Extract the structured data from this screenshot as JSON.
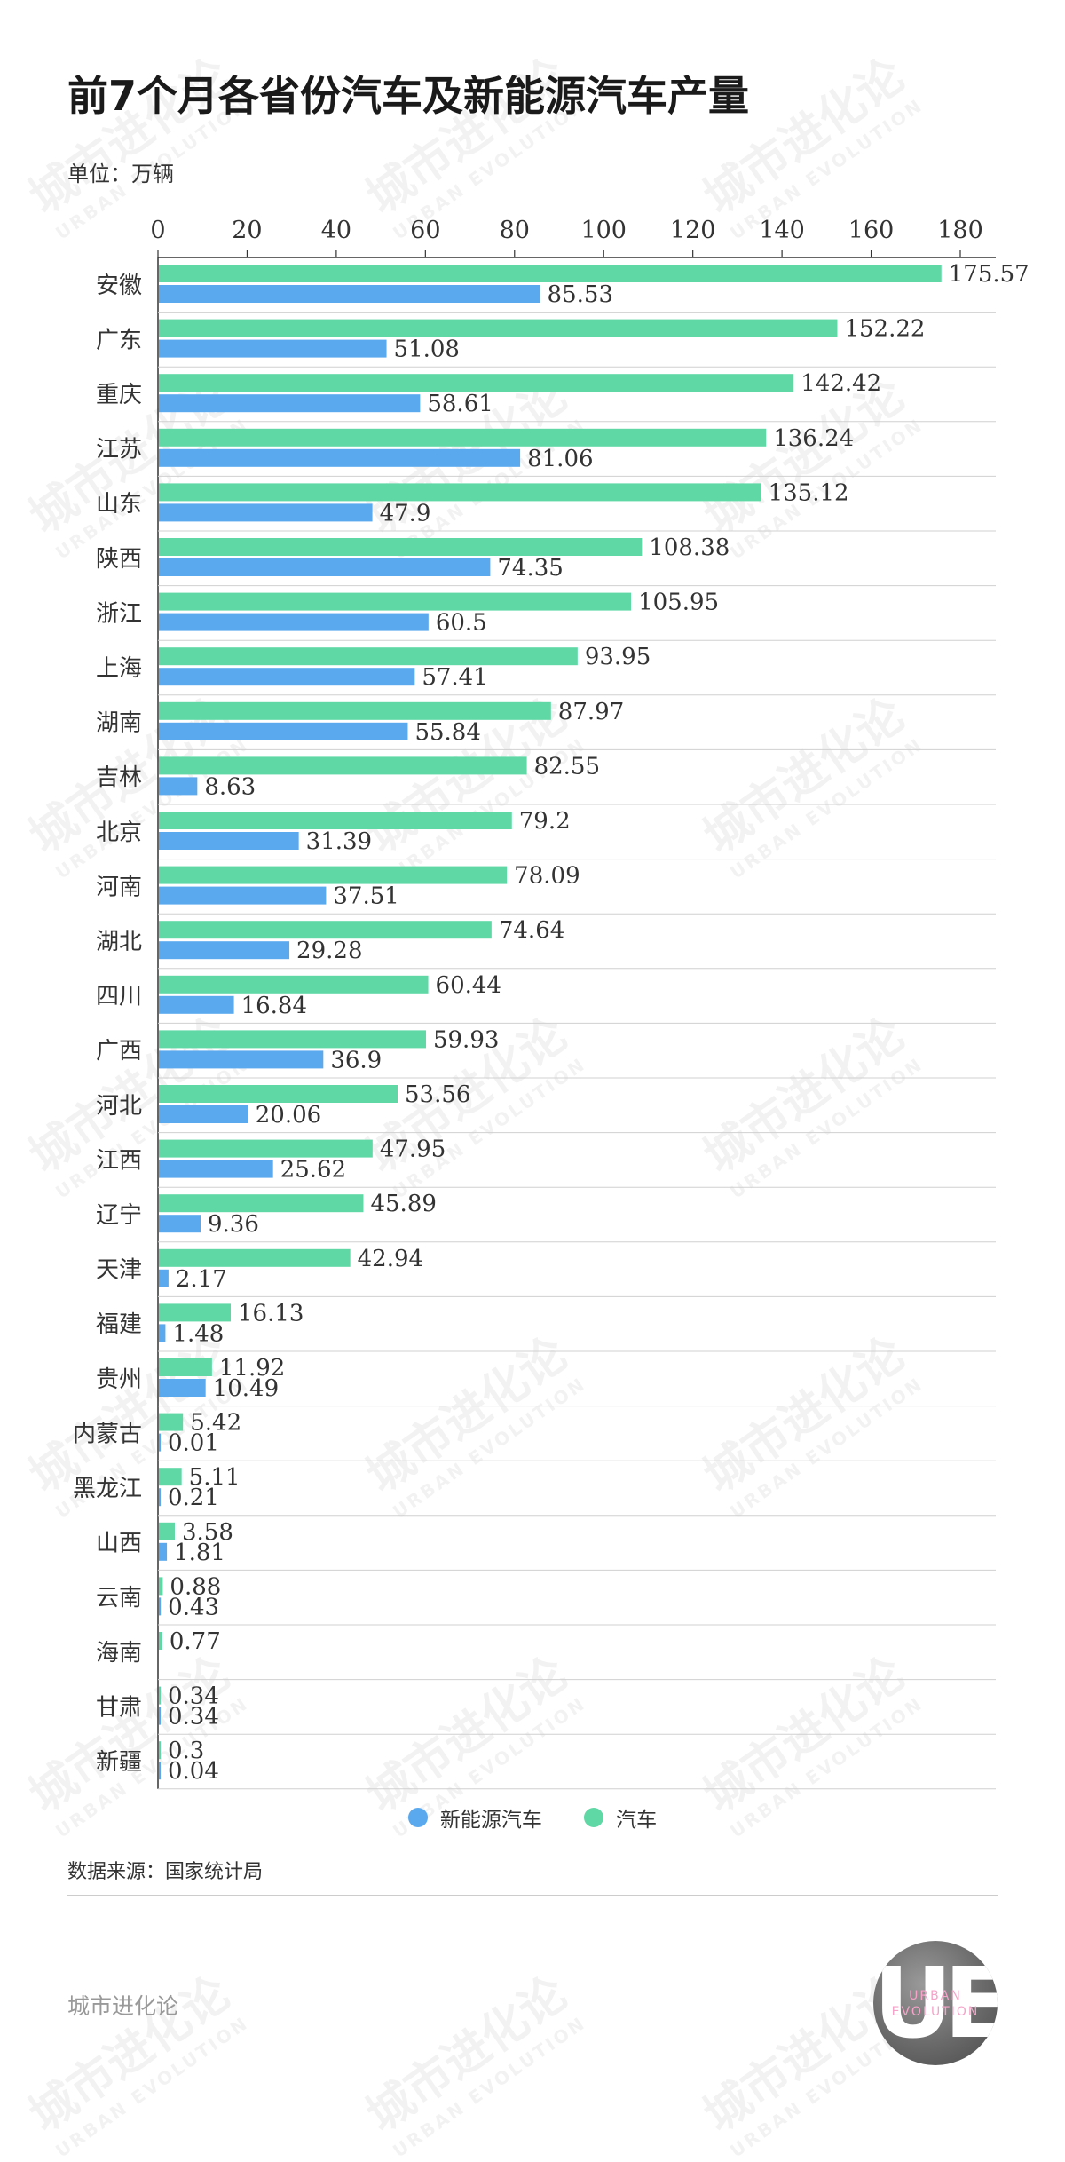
{
  "header": {
    "title": "前7个月各省份汽车及新能源汽车产量",
    "unit": "单位：万辆"
  },
  "legend": {
    "nev": "新能源汽车",
    "car": "汽车"
  },
  "source": "数据来源：国家统计局",
  "footer": {
    "brand": "城市进化论",
    "logo_letters": "UE",
    "logo_text_1": "URBAN",
    "logo_text_2": "EVOLUTION"
  },
  "watermark": {
    "text": "城市进化论",
    "sub": "URBAN EVOLUTION"
  },
  "colors": {
    "car": "#5fd8a5",
    "nev": "#5aa9ee",
    "grid": "#d0d0d0",
    "axis": "#333333"
  },
  "chart_data": {
    "type": "bar",
    "orientation": "horizontal",
    "title": "前7个月各省份汽车及新能源汽车产量",
    "unit": "万辆",
    "xlim": [
      0,
      180
    ],
    "xticks": [
      0,
      20,
      40,
      60,
      80,
      100,
      120,
      140,
      160,
      180
    ],
    "x_axis_position": "top",
    "legend_position": "bottom",
    "categories": [
      "安徽",
      "广东",
      "重庆",
      "江苏",
      "山东",
      "陕西",
      "浙江",
      "上海",
      "湖南",
      "吉林",
      "北京",
      "河南",
      "湖北",
      "四川",
      "广西",
      "河北",
      "江西",
      "辽宁",
      "天津",
      "福建",
      "贵州",
      "内蒙古",
      "黑龙江",
      "山西",
      "云南",
      "海南",
      "甘肃",
      "新疆"
    ],
    "series": [
      {
        "name": "汽车",
        "color": "#5fd8a5",
        "values": [
          175.57,
          152.22,
          142.42,
          136.24,
          135.12,
          108.38,
          105.95,
          93.95,
          87.97,
          82.55,
          79.2,
          78.09,
          74.64,
          60.44,
          59.93,
          53.56,
          47.95,
          45.89,
          42.94,
          16.13,
          11.92,
          5.42,
          5.11,
          3.58,
          0.88,
          0.77,
          0.34,
          0.3
        ],
        "labels": [
          "175.57",
          "152.22",
          "142.42",
          "136.24",
          "135.12",
          "108.38",
          "105.95",
          "93.95",
          "87.97",
          "82.55",
          "79.2",
          "78.09",
          "74.64",
          "60.44",
          "59.93",
          "53.56",
          "47.95",
          "45.89",
          "42.94",
          "16.13",
          "11.92",
          "5.42",
          "5.11",
          "3.58",
          "0.88",
          "0.77",
          "0.34",
          "0.3"
        ]
      },
      {
        "name": "新能源汽车",
        "color": "#5aa9ee",
        "values": [
          85.53,
          51.08,
          58.61,
          81.06,
          47.9,
          74.35,
          60.5,
          57.41,
          55.84,
          8.63,
          31.39,
          37.51,
          29.28,
          16.84,
          36.9,
          20.06,
          25.62,
          9.36,
          2.17,
          1.48,
          10.49,
          0.01,
          0.21,
          1.81,
          0.43,
          null,
          0.34,
          0.04
        ],
        "labels": [
          "85.53",
          "51.08",
          "58.61",
          "81.06",
          "47.9",
          "74.35",
          "60.5",
          "57.41",
          "55.84",
          "8.63",
          "31.39",
          "37.51",
          "29.28",
          "16.84",
          "36.9",
          "20.06",
          "25.62",
          "9.36",
          "2.17",
          "1.48",
          "10.49",
          "0.01",
          "0.21",
          "1.81",
          "0.43",
          "",
          "0.34",
          "0.04"
        ]
      }
    ]
  }
}
